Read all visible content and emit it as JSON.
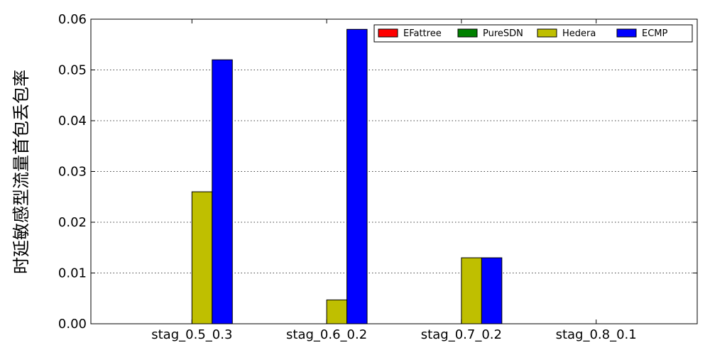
{
  "chart_data": {
    "type": "bar",
    "title": "",
    "xlabel": "",
    "ylabel": "时延敏感型流量首包丢包率",
    "categories": [
      "stag_0.5_0.3",
      "stag_0.6_0.2",
      "stag_0.7_0.2",
      "stag_0.8_0.1"
    ],
    "series": [
      {
        "name": "EFattree",
        "color": "#ff0000",
        "values": [
          0,
          0,
          0,
          0
        ]
      },
      {
        "name": "PureSDN",
        "color": "#008000",
        "values": [
          0,
          0,
          0,
          0
        ]
      },
      {
        "name": "Hedera",
        "color": "#bfbf00",
        "values": [
          0.026,
          0.0047,
          0.013,
          0
        ]
      },
      {
        "name": "ECMP",
        "color": "#0000ff",
        "values": [
          0.052,
          0.058,
          0.013,
          0
        ]
      }
    ],
    "ylim": [
      0,
      0.06
    ],
    "yticks": [
      "0.00",
      "0.01",
      "0.02",
      "0.03",
      "0.04",
      "0.05",
      "0.06"
    ],
    "grid": "y-dotted",
    "legend_position": "top-right"
  }
}
